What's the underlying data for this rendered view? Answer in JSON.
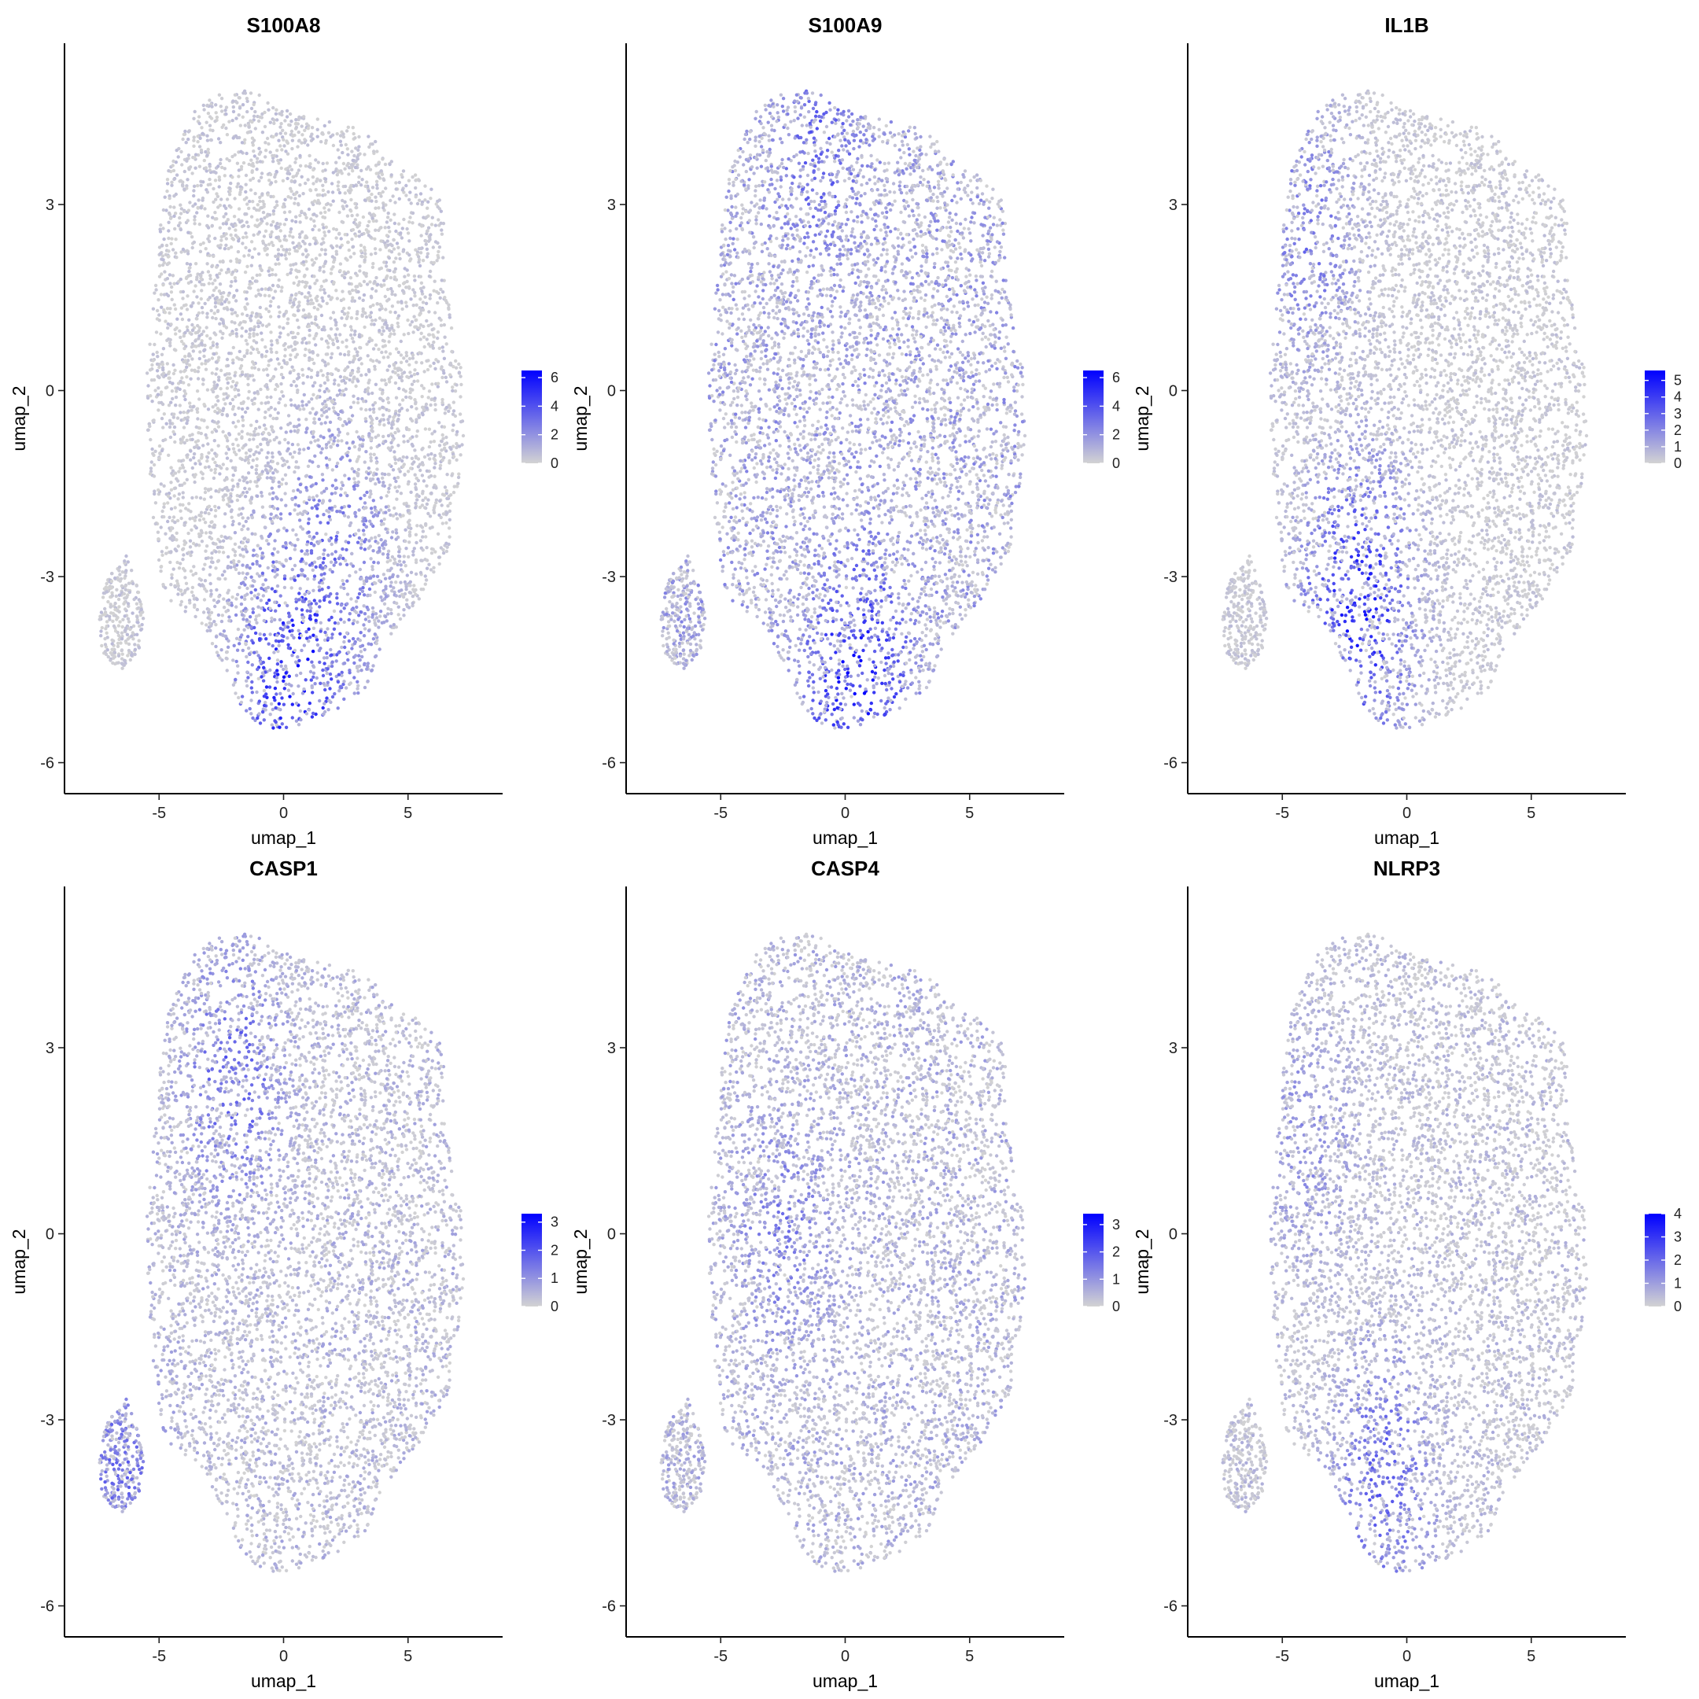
{
  "figure": {
    "type": "feature-plot grid",
    "columns": 3,
    "rows": 2,
    "colors": {
      "low": "#d3d3d3",
      "high": "#0000ff",
      "axis": "#000000"
    }
  },
  "chart_data": [
    {
      "type": "scatter",
      "title": "S100A8",
      "xlabel": "umap_1",
      "ylabel": "umap_2",
      "xlim": [
        -8.8,
        8.8
      ],
      "ylim": [
        -6.5,
        5.6
      ],
      "x_ticks": [
        -5,
        0,
        5
      ],
      "x_tick_labels": [
        "-5",
        "0",
        "5"
      ],
      "y_ticks": [
        -6,
        -3,
        0,
        3
      ],
      "y_tick_labels": [
        "-6",
        "-3",
        "0",
        "3"
      ],
      "legend": {
        "position": "right",
        "min": 0,
        "max": 6.5,
        "breaks": [
          0,
          2,
          4,
          6
        ],
        "break_labels": [
          "0",
          "2",
          "4",
          "6"
        ]
      },
      "expression_hotspots": [
        {
          "x": 0.5,
          "y": -4.6,
          "level": 0.95
        },
        {
          "x": 2.0,
          "y": -2.8,
          "level": 0.55
        }
      ],
      "base_level": 0.12,
      "grid": false
    },
    {
      "type": "scatter",
      "title": "S100A9",
      "xlabel": "umap_1",
      "ylabel": "umap_2",
      "xlim": [
        -8.8,
        8.8
      ],
      "ylim": [
        -6.5,
        5.6
      ],
      "x_ticks": [
        -5,
        0,
        5
      ],
      "x_tick_labels": [
        "-5",
        "0",
        "5"
      ],
      "y_ticks": [
        -6,
        -3,
        0,
        3
      ],
      "y_tick_labels": [
        "-6",
        "-3",
        "0",
        "3"
      ],
      "legend": {
        "position": "right",
        "min": 0,
        "max": 6.5,
        "breaks": [
          0,
          2,
          4,
          6
        ],
        "break_labels": [
          "0",
          "2",
          "4",
          "6"
        ]
      },
      "expression_hotspots": [
        {
          "x": 0.5,
          "y": -4.6,
          "level": 0.95
        },
        {
          "x": -1.0,
          "y": 3.8,
          "level": 0.6
        }
      ],
      "base_level": 0.4,
      "grid": false
    },
    {
      "type": "scatter",
      "title": "IL1B",
      "xlabel": "umap_1",
      "ylabel": "umap_2",
      "xlim": [
        -8.8,
        8.8
      ],
      "ylim": [
        -6.5,
        5.6
      ],
      "x_ticks": [
        -5,
        0,
        5
      ],
      "x_tick_labels": [
        "-5",
        "0",
        "5"
      ],
      "y_ticks": [
        -6,
        -3,
        0,
        3
      ],
      "y_tick_labels": [
        "-6",
        "-3",
        "0",
        "3"
      ],
      "legend": {
        "position": "right",
        "min": 0,
        "max": 5.6,
        "breaks": [
          0,
          1,
          2,
          3,
          4,
          5
        ],
        "break_labels": [
          "0",
          "1",
          "2",
          "3",
          "4",
          "5"
        ]
      },
      "expression_hotspots": [
        {
          "x": -2.0,
          "y": -3.5,
          "level": 0.9
        },
        {
          "x": -4.0,
          "y": 2.5,
          "level": 0.5
        }
      ],
      "base_level": 0.12,
      "grid": false
    },
    {
      "type": "scatter",
      "title": "CASP1",
      "xlabel": "umap_1",
      "ylabel": "umap_2",
      "xlim": [
        -8.8,
        8.8
      ],
      "ylim": [
        -6.5,
        5.6
      ],
      "x_ticks": [
        -5,
        0,
        5
      ],
      "x_tick_labels": [
        "-5",
        "0",
        "5"
      ],
      "y_ticks": [
        -6,
        -3,
        0,
        3
      ],
      "y_tick_labels": [
        "-6",
        "-3",
        "0",
        "3"
      ],
      "legend": {
        "position": "right",
        "min": 0,
        "max": 3.3,
        "breaks": [
          0,
          1,
          2,
          3
        ],
        "break_labels": [
          "0",
          "1",
          "2",
          "3"
        ]
      },
      "expression_hotspots": [
        {
          "x": -2.0,
          "y": 2.5,
          "level": 0.6
        },
        {
          "x": -6.5,
          "y": -3.8,
          "level": 0.55
        }
      ],
      "base_level": 0.25,
      "grid": false
    },
    {
      "type": "scatter",
      "title": "CASP4",
      "xlabel": "umap_1",
      "ylabel": "umap_2",
      "xlim": [
        -8.8,
        8.8
      ],
      "ylim": [
        -6.5,
        5.6
      ],
      "x_ticks": [
        -5,
        0,
        5
      ],
      "x_tick_labels": [
        "-5",
        "0",
        "5"
      ],
      "y_ticks": [
        -6,
        -3,
        0,
        3
      ],
      "y_tick_labels": [
        "-6",
        "-3",
        "0",
        "3"
      ],
      "legend": {
        "position": "right",
        "min": 0,
        "max": 3.4,
        "breaks": [
          0,
          1,
          2,
          3
        ],
        "break_labels": [
          "0",
          "1",
          "2",
          "3"
        ]
      },
      "expression_hotspots": [
        {
          "x": -2.5,
          "y": 0.0,
          "level": 0.5
        }
      ],
      "base_level": 0.3,
      "grid": false
    },
    {
      "type": "scatter",
      "title": "NLRP3",
      "xlabel": "umap_1",
      "ylabel": "umap_2",
      "xlim": [
        -8.8,
        8.8
      ],
      "ylim": [
        -6.5,
        5.6
      ],
      "x_ticks": [
        -5,
        0,
        5
      ],
      "x_tick_labels": [
        "-5",
        "0",
        "5"
      ],
      "y_ticks": [
        -6,
        -3,
        0,
        3
      ],
      "y_tick_labels": [
        "-6",
        "-3",
        "0",
        "3"
      ],
      "legend": {
        "position": "right",
        "min": 0,
        "max": 4.0,
        "breaks": [
          0,
          1,
          2,
          3,
          4
        ],
        "break_labels": [
          "0",
          "1",
          "2",
          "3",
          "4"
        ]
      },
      "expression_hotspots": [
        {
          "x": -1.0,
          "y": -4.0,
          "level": 0.6
        },
        {
          "x": -4.0,
          "y": 1.5,
          "level": 0.4
        }
      ],
      "base_level": 0.2,
      "grid": false
    }
  ]
}
